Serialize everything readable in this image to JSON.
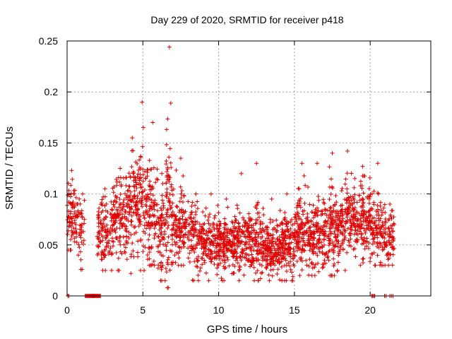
{
  "chart_data": {
    "type": "scatter",
    "title": "Day 229 of 2020, SRMTID for receiver p418",
    "xlabel": "GPS time / hours",
    "ylabel": "SRMTID / TECUs",
    "xlim": [
      0,
      24
    ],
    "ylim": [
      0,
      0.25
    ],
    "xticks": [
      0,
      5,
      10,
      15,
      20
    ],
    "xtick_labels": [
      "0",
      "5",
      "10",
      "15",
      "20"
    ],
    "yticks": [
      0,
      0.05,
      0.1,
      0.15,
      0.2,
      0.25
    ],
    "ytick_labels": [
      "0",
      "0.05",
      "0.1",
      "0.15",
      "0.2",
      "0.25"
    ],
    "grid": true,
    "marker": "+",
    "color": "#e00000",
    "series": [
      {
        "name": "SRMTID",
        "segments": [
          {
            "x_start": 0.0,
            "x_end": 0.6,
            "mean": 0.075,
            "spread": 0.018,
            "min": 0.045,
            "max": 0.123,
            "count": 70
          },
          {
            "x_start": 0.6,
            "x_end": 1.0,
            "mean": 0.068,
            "spread": 0.014,
            "min": 0.04,
            "max": 0.095,
            "count": 30
          },
          {
            "x_start": 0.9,
            "x_end": 1.15,
            "mean": 0.065,
            "spread": 0.02,
            "min": 0.026,
            "max": 0.1,
            "count": 14
          },
          {
            "x_start": 2.0,
            "x_end": 3.0,
            "mean": 0.062,
            "spread": 0.018,
            "min": 0.025,
            "max": 0.105,
            "count": 110
          },
          {
            "x_start": 3.0,
            "x_end": 4.0,
            "mean": 0.075,
            "spread": 0.022,
            "min": 0.025,
            "max": 0.125,
            "count": 130
          },
          {
            "x_start": 4.0,
            "x_end": 4.6,
            "mean": 0.085,
            "spread": 0.022,
            "min": 0.022,
            "max": 0.155,
            "count": 80
          },
          {
            "x_start": 4.6,
            "x_end": 5.3,
            "mean": 0.095,
            "spread": 0.028,
            "min": 0.025,
            "max": 0.19,
            "count": 90
          },
          {
            "x_start": 5.3,
            "x_end": 6.0,
            "mean": 0.08,
            "spread": 0.025,
            "min": 0.03,
            "max": 0.17,
            "count": 90
          },
          {
            "x_start": 6.0,
            "x_end": 6.5,
            "mean": 0.065,
            "spread": 0.02,
            "min": 0.015,
            "max": 0.12,
            "count": 60
          },
          {
            "x_start": 6.5,
            "x_end": 7.0,
            "mean": 0.09,
            "spread": 0.035,
            "min": 0.008,
            "max": 0.244,
            "count": 80
          },
          {
            "x_start": 7.0,
            "x_end": 8.0,
            "mean": 0.07,
            "spread": 0.02,
            "min": 0.03,
            "max": 0.135,
            "count": 110
          },
          {
            "x_start": 8.0,
            "x_end": 9.0,
            "mean": 0.058,
            "spread": 0.016,
            "min": 0.015,
            "max": 0.1,
            "count": 110
          },
          {
            "x_start": 9.0,
            "x_end": 10.0,
            "mean": 0.052,
            "spread": 0.014,
            "min": 0.015,
            "max": 0.1,
            "count": 120
          },
          {
            "x_start": 10.0,
            "x_end": 11.0,
            "mean": 0.05,
            "spread": 0.013,
            "min": 0.015,
            "max": 0.095,
            "count": 130
          },
          {
            "x_start": 11.0,
            "x_end": 12.0,
            "mean": 0.055,
            "spread": 0.015,
            "min": 0.015,
            "max": 0.12,
            "count": 130
          },
          {
            "x_start": 12.0,
            "x_end": 13.0,
            "mean": 0.052,
            "spread": 0.016,
            "min": 0.015,
            "max": 0.13,
            "count": 130
          },
          {
            "x_start": 13.0,
            "x_end": 14.0,
            "mean": 0.045,
            "spread": 0.013,
            "min": 0.015,
            "max": 0.095,
            "count": 140
          },
          {
            "x_start": 14.0,
            "x_end": 15.0,
            "mean": 0.05,
            "spread": 0.015,
            "min": 0.015,
            "max": 0.1,
            "count": 140
          },
          {
            "x_start": 15.0,
            "x_end": 16.0,
            "mean": 0.062,
            "spread": 0.018,
            "min": 0.02,
            "max": 0.13,
            "count": 130
          },
          {
            "x_start": 16.0,
            "x_end": 17.0,
            "mean": 0.06,
            "spread": 0.018,
            "min": 0.02,
            "max": 0.13,
            "count": 130
          },
          {
            "x_start": 17.0,
            "x_end": 18.0,
            "mean": 0.065,
            "spread": 0.02,
            "min": 0.02,
            "max": 0.14,
            "count": 130
          },
          {
            "x_start": 18.0,
            "x_end": 19.0,
            "mean": 0.075,
            "spread": 0.02,
            "min": 0.025,
            "max": 0.142,
            "count": 130
          },
          {
            "x_start": 19.0,
            "x_end": 20.0,
            "mean": 0.075,
            "spread": 0.018,
            "min": 0.03,
            "max": 0.127,
            "count": 130
          },
          {
            "x_start": 20.0,
            "x_end": 21.0,
            "mean": 0.065,
            "spread": 0.018,
            "min": 0.03,
            "max": 0.13,
            "count": 110
          },
          {
            "x_start": 21.0,
            "x_end": 21.6,
            "mean": 0.055,
            "spread": 0.013,
            "min": 0.03,
            "max": 0.09,
            "count": 60
          }
        ],
        "zero_runs": [
          {
            "x_start": 0.05,
            "x_end": 0.12,
            "count": 2
          },
          {
            "x_start": 1.2,
            "x_end": 2.2,
            "count": 22
          },
          {
            "x_start": 20.1,
            "x_end": 20.3,
            "count": 4
          },
          {
            "x_start": 20.95,
            "x_end": 21.05,
            "count": 2
          },
          {
            "x_start": 21.3,
            "x_end": 21.5,
            "count": 3
          }
        ]
      }
    ]
  }
}
